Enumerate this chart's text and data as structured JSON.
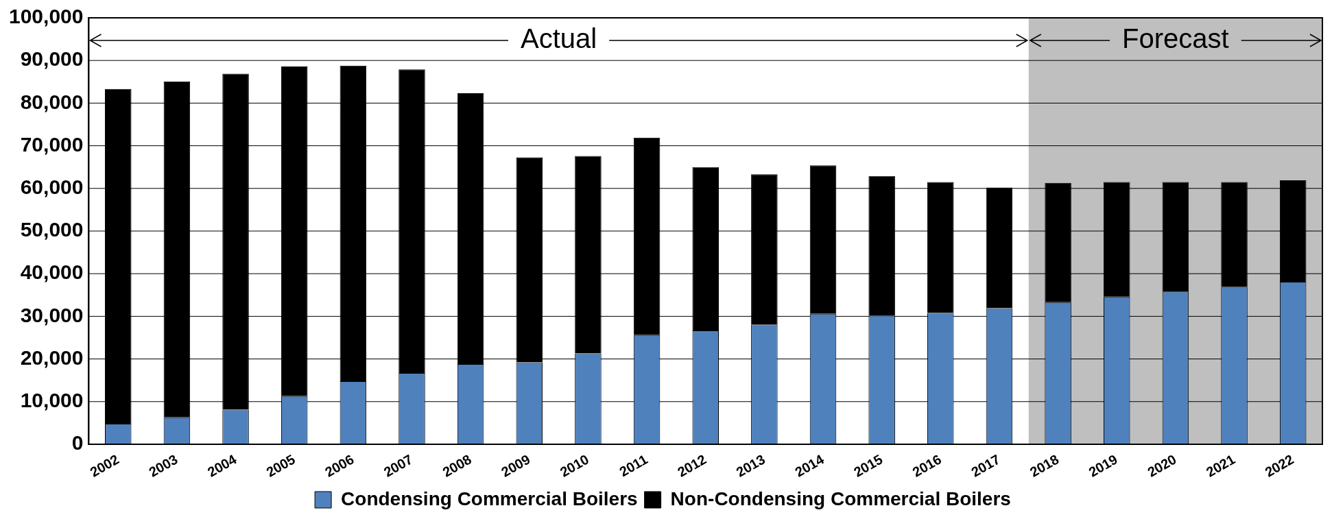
{
  "chart_data": {
    "type": "bar",
    "stacked": true,
    "categories": [
      "2002",
      "2003",
      "2004",
      "2005",
      "2006",
      "2007",
      "2008",
      "2009",
      "2010",
      "2011",
      "2012",
      "2013",
      "2014",
      "2015",
      "2016",
      "2017",
      "2018",
      "2019",
      "2020",
      "2021",
      "2022"
    ],
    "series": [
      {
        "name": "Condensing Commercial Boilers",
        "color": "#4f81bd",
        "values": [
          4800,
          6300,
          8100,
          11300,
          14800,
          16700,
          18800,
          19200,
          21300,
          25600,
          26700,
          28100,
          30600,
          30200,
          30800,
          31900,
          33300,
          34600,
          35800,
          36900,
          38100
        ]
      },
      {
        "name": "Non-Condensing Commercial Boilers",
        "color": "#000000",
        "values": [
          78500,
          78800,
          78800,
          77300,
          74000,
          71200,
          63500,
          48100,
          46300,
          46300,
          38300,
          35200,
          34800,
          32700,
          30700,
          28300,
          28000,
          26900,
          25700,
          24600,
          23800
        ]
      }
    ],
    "ylim": [
      0,
      100000
    ],
    "yticks": [
      {
        "value": 0,
        "label": "0"
      },
      {
        "value": 10000,
        "label": "10,000"
      },
      {
        "value": 20000,
        "label": "20,000"
      },
      {
        "value": 30000,
        "label": "30,000"
      },
      {
        "value": 40000,
        "label": "40,000"
      },
      {
        "value": 50000,
        "label": "50,000"
      },
      {
        "value": 60000,
        "label": "60,000"
      },
      {
        "value": 70000,
        "label": "70,000"
      },
      {
        "value": 80000,
        "label": "80,000"
      },
      {
        "value": 90000,
        "label": "90,000"
      },
      {
        "value": 100000,
        "label": "100,000"
      }
    ],
    "grid": "y",
    "legend": "bottom",
    "bands": [
      {
        "axis": "x",
        "from": "2002",
        "to": "2017",
        "label": "Actual",
        "color": "#ffffff"
      },
      {
        "axis": "x",
        "from": "2018",
        "to": "2022",
        "label": "Forecast",
        "color": "#bfbfbf"
      }
    ]
  }
}
